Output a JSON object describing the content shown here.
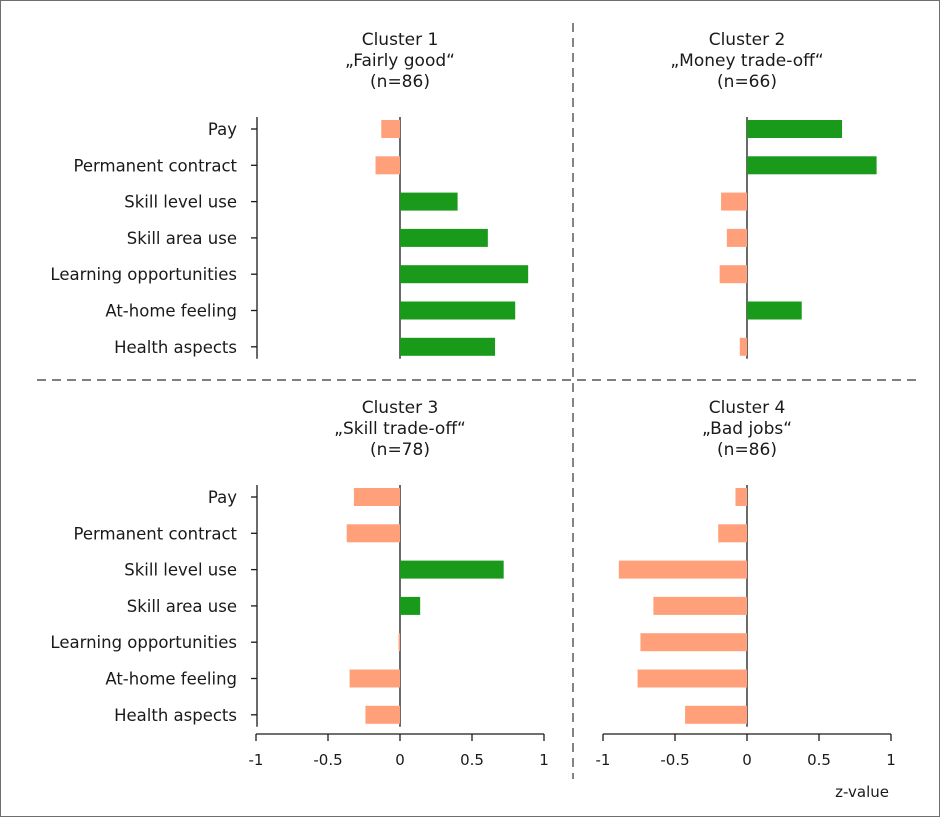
{
  "chart_data": {
    "type": "bar",
    "orientation": "horizontal",
    "xlabel": "z-value",
    "xlim": [
      -1,
      1
    ],
    "xticks": [
      -1,
      -0.5,
      0,
      0.5,
      1
    ],
    "xtick_labels": [
      "-1",
      "-0.5",
      "0",
      "0.5",
      "1"
    ],
    "grid": false,
    "legend": false,
    "categories": [
      "Pay",
      "Permanent contract",
      "Skill level use",
      "Skill area use",
      "Learning opportunities",
      "At-home feeling",
      "Health aspects"
    ],
    "colors": {
      "positive": "#1a9a1a",
      "negative": "#ffa07a"
    },
    "panels": [
      {
        "title": [
          "Cluster 1",
          "„Fairly good“",
          "(n=86)"
        ],
        "values": [
          -0.13,
          -0.17,
          0.4,
          0.61,
          0.89,
          0.8,
          0.66
        ]
      },
      {
        "title": [
          "Cluster 2",
          "„Money trade-off“",
          "(n=66)"
        ],
        "values": [
          0.66,
          0.9,
          -0.18,
          -0.14,
          -0.19,
          0.38,
          -0.05
        ]
      },
      {
        "title": [
          "Cluster 3",
          "„Skill trade-off“",
          "(n=78)"
        ],
        "values": [
          -0.32,
          -0.37,
          0.72,
          0.14,
          -0.01,
          -0.35,
          -0.24
        ]
      },
      {
        "title": [
          "Cluster 4",
          "„Bad jobs“",
          "(n=86)"
        ],
        "values": [
          -0.08,
          -0.2,
          -0.89,
          -0.65,
          -0.74,
          -0.76,
          -0.43
        ]
      }
    ]
  }
}
